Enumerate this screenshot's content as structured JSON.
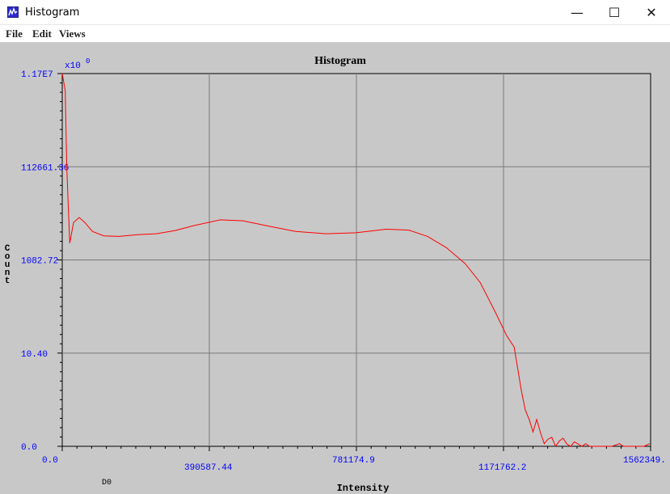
{
  "window": {
    "title": "Histogram",
    "minimize_glyph": "—",
    "maximize_glyph": "☐",
    "close_glyph": "✕",
    "icon": "chart-icon"
  },
  "menu": [
    "File",
    "Edit",
    "Views"
  ],
  "colors": {
    "background": "#c8c8c8",
    "series": "#ff0000",
    "axis_text": "#0000ff",
    "grid": "#7a7a7a"
  },
  "chart_data": {
    "type": "line",
    "title": "Histogram",
    "xlabel": "Intensity",
    "ylabel": "Count",
    "x_multiplier_label": "x10",
    "x_multiplier_exp": "0",
    "y_scale": "log",
    "grid": true,
    "x_tick_labels": [
      "0.0",
      "390587.44",
      "781174.9",
      "1171762.2",
      "1562349."
    ],
    "x_ticks": [
      0,
      390587.44,
      781174.9,
      1171762.2,
      1562349.0
    ],
    "x_range": [
      0,
      1562349.0
    ],
    "y_tick_labels": [
      "0.0",
      "10.40",
      "1082.72",
      "112661.36",
      "1.17E7"
    ],
    "stray_label": "D0",
    "series": [
      {
        "points": [
          [
            0,
            11700000
          ],
          [
            8000,
            5000000
          ],
          [
            12000,
            110000
          ],
          [
            20000,
            2500
          ],
          [
            30000,
            7000
          ],
          [
            45000,
            9000
          ],
          [
            60000,
            7000
          ],
          [
            80000,
            4500
          ],
          [
            110000,
            3600
          ],
          [
            150000,
            3500
          ],
          [
            200000,
            3800
          ],
          [
            250000,
            4000
          ],
          [
            300000,
            4700
          ],
          [
            350000,
            6000
          ],
          [
            420000,
            8000
          ],
          [
            480000,
            7600
          ],
          [
            550000,
            5800
          ],
          [
            620000,
            4500
          ],
          [
            700000,
            4000
          ],
          [
            780000,
            4200
          ],
          [
            860000,
            5000
          ],
          [
            920000,
            4800
          ],
          [
            970000,
            3500
          ],
          [
            1020000,
            2000
          ],
          [
            1070000,
            900
          ],
          [
            1110000,
            350
          ],
          [
            1150000,
            80
          ],
          [
            1180000,
            25
          ],
          [
            1200000,
            14
          ],
          [
            1220000,
            6
          ],
          [
            1230000,
            4
          ],
          [
            1240000,
            3
          ],
          [
            1250000,
            1.6
          ],
          [
            1260000,
            3
          ],
          [
            1270000,
            1.5
          ],
          [
            1280000,
            0.3
          ],
          [
            1290000,
            0.8
          ],
          [
            1300000,
            1.0
          ],
          [
            1310000,
            0
          ],
          [
            1320000,
            0.6
          ],
          [
            1330000,
            0.9
          ],
          [
            1340000,
            0.25
          ],
          [
            1350000,
            0
          ],
          [
            1360000,
            0.5
          ],
          [
            1370000,
            0.25
          ],
          [
            1380000,
            0
          ],
          [
            1390000,
            0.3
          ],
          [
            1400000,
            0
          ],
          [
            1420000,
            0
          ],
          [
            1460000,
            0
          ],
          [
            1480000,
            0.3
          ],
          [
            1490000,
            0
          ],
          [
            1530000,
            0
          ],
          [
            1545000,
            0
          ],
          [
            1560000,
            0.3
          ]
        ]
      }
    ]
  }
}
